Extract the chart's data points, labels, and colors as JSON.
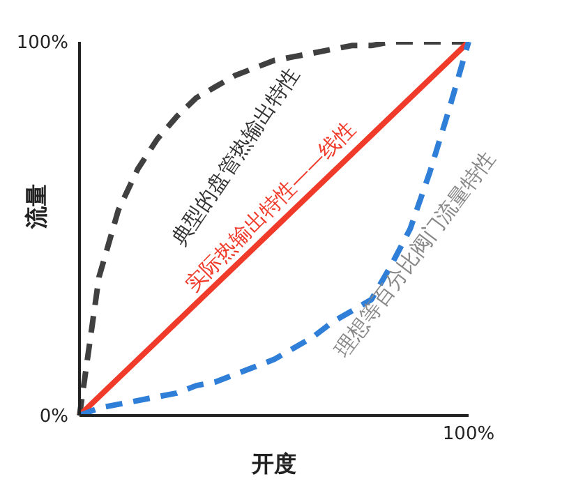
{
  "chart_data": {
    "type": "line",
    "xlabel": "开度",
    "ylabel": "流量",
    "categories": [
      null,
      null,
      null,
      null,
      null,
      null,
      null,
      null,
      null,
      null,
      null,
      null,
      null,
      null,
      null,
      null,
      null,
      null,
      null,
      null,
      "100%"
    ],
    "ylim": [
      0,
      100
    ],
    "yticks": [
      {
        "value": 0,
        "label": "0%"
      },
      {
        "value": 100,
        "label": "100%"
      }
    ],
    "marker": "none",
    "series": [
      {
        "name": "典型的盘管热输出特性",
        "color": "#404040",
        "line_style": "dashed",
        "values": [
          0,
          37,
          55,
          66,
          74,
          80,
          85,
          88,
          91,
          93,
          95,
          96,
          97,
          98,
          99,
          99,
          100,
          100,
          100,
          100,
          100
        ]
      },
      {
        "name": "实际热输出特性——线性",
        "color": "#f03a2a",
        "line_style": "solid",
        "values": [
          0,
          5,
          10,
          15,
          20,
          25,
          30,
          35,
          40,
          45,
          50,
          55,
          60,
          65,
          70,
          75,
          80,
          85,
          90,
          95,
          100
        ]
      },
      {
        "name": "理想等百分比阀门流量特性",
        "color": "#2f7fd8",
        "line_style": "dashed",
        "values": [
          0,
          2,
          3,
          4,
          5,
          6,
          8,
          9,
          11,
          13,
          15,
          18,
          21,
          25,
          28,
          31,
          40,
          50,
          65,
          82,
          100
        ]
      }
    ]
  }
}
